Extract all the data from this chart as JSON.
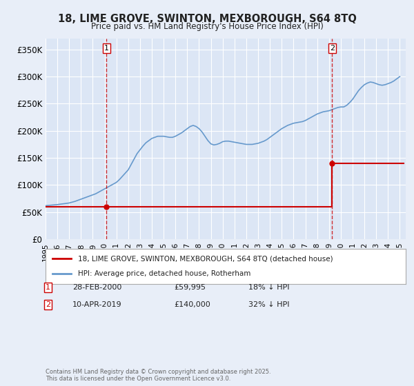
{
  "title": "18, LIME GROVE, SWINTON, MEXBOROUGH, S64 8TQ",
  "subtitle": "Price paid vs. HM Land Registry's House Price Index (HPI)",
  "background_color": "#e8eef8",
  "plot_bg_color": "#dce6f5",
  "ylim": [
    0,
    370000
  ],
  "yticks": [
    0,
    50000,
    100000,
    150000,
    200000,
    250000,
    300000,
    350000
  ],
  "ytick_labels": [
    "£0",
    "£50K",
    "£100K",
    "£150K",
    "£200K",
    "£250K",
    "£300K",
    "£350K"
  ],
  "xlim_start": 1995.0,
  "xlim_end": 2025.5,
  "transaction1": {
    "year": 2000.16,
    "price": 59995,
    "label": "1"
  },
  "transaction2": {
    "year": 2019.27,
    "price": 140000,
    "label": "2"
  },
  "red_line_color": "#cc0000",
  "blue_line_color": "#6699cc",
  "grid_color": "#ffffff",
  "legend_label_red": "18, LIME GROVE, SWINTON, MEXBOROUGH, S64 8TQ (detached house)",
  "legend_label_blue": "HPI: Average price, detached house, Rotherham",
  "annot1_date": "28-FEB-2000",
  "annot1_price": "£59,995",
  "annot1_hpi": "18% ↓ HPI",
  "annot2_date": "10-APR-2019",
  "annot2_price": "£140,000",
  "annot2_hpi": "32% ↓ HPI",
  "footer": "Contains HM Land Registry data © Crown copyright and database right 2025.\nThis data is licensed under the Open Government Licence v3.0.",
  "hpi_data_x": [
    1995.0,
    1995.25,
    1995.5,
    1995.75,
    1996.0,
    1996.25,
    1996.5,
    1996.75,
    1997.0,
    1997.25,
    1997.5,
    1997.75,
    1998.0,
    1998.25,
    1998.5,
    1998.75,
    1999.0,
    1999.25,
    1999.5,
    1999.75,
    2000.0,
    2000.25,
    2000.5,
    2000.75,
    2001.0,
    2001.25,
    2001.5,
    2001.75,
    2002.0,
    2002.25,
    2002.5,
    2002.75,
    2003.0,
    2003.25,
    2003.5,
    2003.75,
    2004.0,
    2004.25,
    2004.5,
    2004.75,
    2005.0,
    2005.25,
    2005.5,
    2005.75,
    2006.0,
    2006.25,
    2006.5,
    2006.75,
    2007.0,
    2007.25,
    2007.5,
    2007.75,
    2008.0,
    2008.25,
    2008.5,
    2008.75,
    2009.0,
    2009.25,
    2009.5,
    2009.75,
    2010.0,
    2010.25,
    2010.5,
    2010.75,
    2011.0,
    2011.25,
    2011.5,
    2011.75,
    2012.0,
    2012.25,
    2012.5,
    2012.75,
    2013.0,
    2013.25,
    2013.5,
    2013.75,
    2014.0,
    2014.25,
    2014.5,
    2014.75,
    2015.0,
    2015.25,
    2015.5,
    2015.75,
    2016.0,
    2016.25,
    2016.5,
    2016.75,
    2017.0,
    2017.25,
    2017.5,
    2017.75,
    2018.0,
    2018.25,
    2018.5,
    2018.75,
    2019.0,
    2019.25,
    2019.5,
    2019.75,
    2020.0,
    2020.25,
    2020.5,
    2020.75,
    2021.0,
    2021.25,
    2021.5,
    2021.75,
    2022.0,
    2022.25,
    2022.5,
    2022.75,
    2023.0,
    2023.25,
    2023.5,
    2023.75,
    2024.0,
    2024.25,
    2024.5,
    2024.75,
    2025.0
  ],
  "hpi_data_y": [
    62000,
    62500,
    63000,
    63500,
    64000,
    64800,
    65500,
    66200,
    67000,
    68500,
    70000,
    72000,
    74000,
    76000,
    78000,
    80000,
    82000,
    84000,
    87000,
    90000,
    93000,
    96000,
    99000,
    102000,
    105000,
    110000,
    116000,
    122000,
    128000,
    138000,
    148000,
    158000,
    165000,
    172000,
    178000,
    182000,
    186000,
    188000,
    190000,
    190000,
    190000,
    189000,
    188000,
    188000,
    190000,
    193000,
    196000,
    200000,
    204000,
    208000,
    210000,
    208000,
    204000,
    198000,
    190000,
    182000,
    176000,
    174000,
    175000,
    177000,
    180000,
    181000,
    181000,
    180000,
    179000,
    178000,
    177000,
    176000,
    175000,
    175000,
    175000,
    176000,
    177000,
    179000,
    181000,
    184000,
    188000,
    192000,
    196000,
    200000,
    204000,
    207000,
    210000,
    212000,
    214000,
    215000,
    216000,
    217000,
    219000,
    222000,
    225000,
    228000,
    231000,
    233000,
    235000,
    236000,
    237000,
    239000,
    241000,
    243000,
    244000,
    244000,
    247000,
    252000,
    258000,
    266000,
    274000,
    280000,
    285000,
    288000,
    290000,
    289000,
    287000,
    285000,
    284000,
    285000,
    287000,
    289000,
    292000,
    296000,
    300000
  ],
  "house_price_steps": [
    {
      "x_start": 1995.0,
      "x_end": 2000.16,
      "price": 59995
    },
    {
      "x_start": 2000.16,
      "x_end": 2019.27,
      "price": 59995
    },
    {
      "x_start": 2019.27,
      "x_end": 2025.3,
      "price": 140000
    }
  ]
}
